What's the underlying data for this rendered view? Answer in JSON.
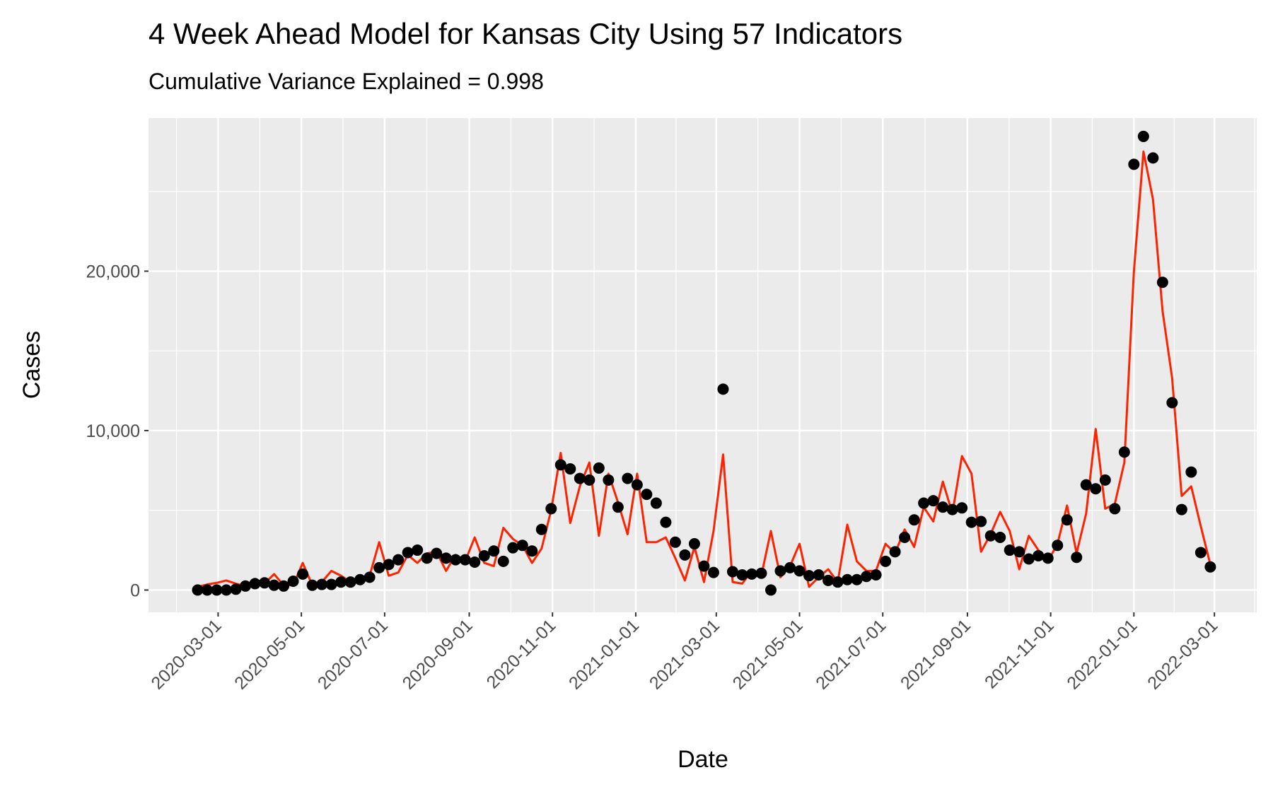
{
  "chart_data": {
    "type": "line",
    "title": "4 Week Ahead Model for Kansas City Using 57 Indicators",
    "subtitle": "Cumulative Variance Explained = 0.998",
    "x_label": "Date",
    "y_label": "Cases",
    "x": [
      "2020-02-15",
      "2020-02-22",
      "2020-02-29",
      "2020-03-07",
      "2020-03-14",
      "2020-03-21",
      "2020-03-28",
      "2020-04-04",
      "2020-04-11",
      "2020-04-18",
      "2020-04-25",
      "2020-05-02",
      "2020-05-09",
      "2020-05-16",
      "2020-05-23",
      "2020-05-30",
      "2020-06-06",
      "2020-06-13",
      "2020-06-20",
      "2020-06-27",
      "2020-07-04",
      "2020-07-11",
      "2020-07-18",
      "2020-07-25",
      "2020-08-01",
      "2020-08-08",
      "2020-08-15",
      "2020-08-22",
      "2020-08-29",
      "2020-09-05",
      "2020-09-12",
      "2020-09-19",
      "2020-09-26",
      "2020-10-03",
      "2020-10-10",
      "2020-10-17",
      "2020-10-24",
      "2020-10-31",
      "2020-11-07",
      "2020-11-14",
      "2020-11-21",
      "2020-11-28",
      "2020-12-05",
      "2020-12-12",
      "2020-12-19",
      "2020-12-26",
      "2021-01-02",
      "2021-01-09",
      "2021-01-16",
      "2021-01-23",
      "2021-01-30",
      "2021-02-06",
      "2021-02-13",
      "2021-02-20",
      "2021-02-27",
      "2021-03-06",
      "2021-03-13",
      "2021-03-20",
      "2021-03-27",
      "2021-04-03",
      "2021-04-10",
      "2021-04-17",
      "2021-04-24",
      "2021-05-01",
      "2021-05-08",
      "2021-05-15",
      "2021-05-22",
      "2021-05-29",
      "2021-06-05",
      "2021-06-12",
      "2021-06-19",
      "2021-06-26",
      "2021-07-03",
      "2021-07-10",
      "2021-07-17",
      "2021-07-24",
      "2021-07-31",
      "2021-08-07",
      "2021-08-14",
      "2021-08-21",
      "2021-08-28",
      "2021-09-04",
      "2021-09-11",
      "2021-09-18",
      "2021-09-25",
      "2021-10-02",
      "2021-10-09",
      "2021-10-16",
      "2021-10-23",
      "2021-10-30",
      "2021-11-06",
      "2021-11-13",
      "2021-11-20",
      "2021-11-27",
      "2021-12-04",
      "2021-12-11",
      "2021-12-18",
      "2021-12-25",
      "2022-01-01",
      "2022-01-08",
      "2022-01-15",
      "2022-01-22",
      "2022-01-29",
      "2022-02-05",
      "2022-02-12",
      "2022-02-19",
      "2022-02-26"
    ],
    "series": [
      {
        "color": "#ff2200",
        "mark": "line",
        "values": [
          200,
          350,
          450,
          600,
          400,
          250,
          700,
          400,
          1000,
          300,
          300,
          1700,
          300,
          500,
          1200,
          900,
          500,
          700,
          900,
          3000,
          900,
          1100,
          2200,
          1700,
          2300,
          2400,
          1200,
          2200,
          1800,
          3300,
          1700,
          1500,
          3900,
          3200,
          2800,
          1700,
          2600,
          5000,
          8600,
          4200,
          6500,
          8000,
          3400,
          7300,
          5500,
          3500,
          7300,
          3000,
          3000,
          3300,
          2000,
          600,
          2700,
          500,
          3700,
          8500,
          500,
          400,
          1200,
          900,
          3700,
          800,
          1500,
          2900,
          200,
          800,
          1300,
          500,
          4100,
          1800,
          1200,
          1200,
          2900,
          2300,
          3800,
          2700,
          5200,
          4300,
          6800,
          4800,
          8400,
          7300,
          2400,
          3500,
          4900,
          3700,
          1300,
          3400,
          2500,
          1800,
          2900,
          5300,
          2300,
          4800,
          10100,
          5100,
          5400,
          8000,
          20000,
          27500,
          24500,
          17500,
          13300,
          5900,
          6500,
          4000,
          1600
        ]
      },
      {
        "color": "#000000",
        "mark": "point",
        "values": [
          0,
          0,
          0,
          0,
          50,
          250,
          400,
          450,
          300,
          250,
          550,
          1000,
          300,
          350,
          350,
          500,
          500,
          650,
          800,
          1400,
          1600,
          1900,
          2350,
          2500,
          2000,
          2300,
          2000,
          1900,
          1900,
          1750,
          2150,
          2450,
          1800,
          2650,
          2800,
          2450,
          3800,
          5100,
          7850,
          7600,
          7000,
          6900,
          7650,
          6900,
          5200,
          7000,
          6600,
          6000,
          5450,
          4250,
          3000,
          2200,
          2900,
          1500,
          1100,
          12600,
          1150,
          950,
          1000,
          1050,
          0,
          1200,
          1400,
          1200,
          900,
          950,
          600,
          500,
          650,
          650,
          850,
          950,
          1800,
          2400,
          3300,
          4400,
          5450,
          5600,
          5200,
          5050,
          5150,
          4250,
          4300,
          3400,
          3300,
          2500,
          2400,
          1950,
          2150,
          2000,
          2800,
          4400,
          2050,
          6600,
          6350,
          6900,
          5100,
          8650,
          26700,
          28450,
          27100,
          19300,
          11750,
          5050,
          7400,
          2350,
          1450
        ]
      }
    ],
    "xlim": [
      "2020-01-10",
      "2022-04-01"
    ],
    "xticks": [
      "2020-03-01",
      "2020-05-01",
      "2020-07-01",
      "2020-09-01",
      "2020-11-01",
      "2021-01-01",
      "2021-03-01",
      "2021-05-01",
      "2021-07-01",
      "2021-09-01",
      "2021-11-01",
      "2022-01-01",
      "2022-03-01"
    ],
    "ylim": [
      -1400,
      29600
    ],
    "yticks": [
      0,
      {
        "value": 10000,
        "label": "10,000"
      },
      {
        "value": 20000,
        "label": "20,000"
      }
    ],
    "grid": true
  }
}
